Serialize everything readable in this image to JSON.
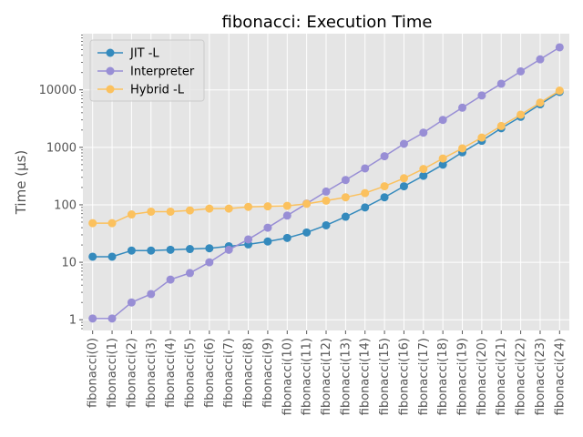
{
  "chart_data": {
    "type": "line",
    "title": "fibonacci: Execution Time",
    "xlabel": "",
    "ylabel": "Time (µs)",
    "yscale": "log",
    "ylim": [
      0.65,
      95000
    ],
    "yticks": [
      1,
      10,
      100,
      1000,
      10000
    ],
    "ytick_labels": [
      "1",
      "10",
      "100",
      "1000",
      "10000"
    ],
    "grid": true,
    "legend_position": "top-left",
    "categories": [
      "fibonacci(0)",
      "fibonacci(1)",
      "fibonacci(2)",
      "fibonacci(3)",
      "fibonacci(4)",
      "fibonacci(5)",
      "fibonacci(6)",
      "fibonacci(7)",
      "fibonacci(8)",
      "fibonacci(9)",
      "fibonacci(10)",
      "fibonacci(11)",
      "fibonacci(12)",
      "fibonacci(13)",
      "fibonacci(14)",
      "fibonacci(15)",
      "fibonacci(16)",
      "fibonacci(17)",
      "fibonacci(18)",
      "fibonacci(19)",
      "fibonacci(20)",
      "fibonacci(21)",
      "fibonacci(22)",
      "fibonacci(23)",
      "fibonacci(24)"
    ],
    "series": [
      {
        "name": "JIT -L",
        "color": "#348abd",
        "values": [
          12.5,
          12.5,
          16,
          16,
          16.5,
          17,
          17.5,
          19,
          20.5,
          23,
          26.5,
          33,
          44,
          62,
          90,
          135,
          210,
          320,
          500,
          820,
          1300,
          2150,
          3400,
          5600,
          9200
        ]
      },
      {
        "name": "Interpreter",
        "color": "#988ed5",
        "values": [
          1.05,
          1.05,
          2,
          2.8,
          5,
          6.5,
          10,
          16.5,
          25,
          40,
          65,
          105,
          170,
          270,
          430,
          700,
          1150,
          1800,
          3000,
          4900,
          8000,
          12800,
          21000,
          34000,
          55000
        ]
      },
      {
        "name": "Hybrid -L",
        "color": "#fbc15e",
        "values": [
          48,
          48,
          68,
          76,
          76,
          80,
          86,
          86,
          92,
          94,
          96,
          104,
          118,
          135,
          160,
          210,
          290,
          420,
          640,
          960,
          1480,
          2350,
          3700,
          6000,
          9700
        ]
      }
    ]
  }
}
